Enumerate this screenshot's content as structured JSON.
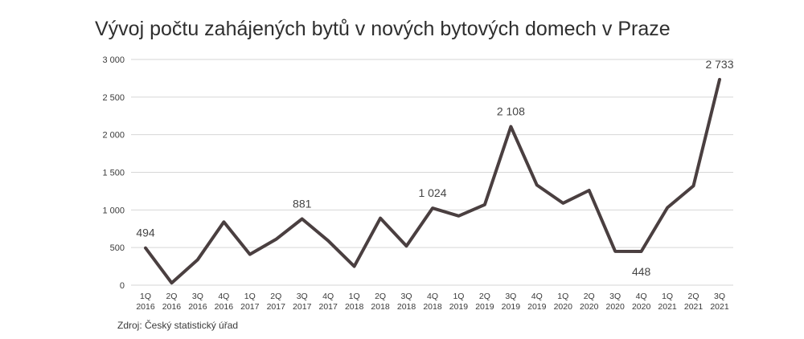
{
  "chart_data": {
    "type": "line",
    "title": "Vývoj počtu zahájených bytů v nových bytových domech v Praze",
    "source": "Zdroj: Český statistický úřad",
    "x_categories": [
      [
        "1Q",
        "2016"
      ],
      [
        "2Q",
        "2016"
      ],
      [
        "3Q",
        "2016"
      ],
      [
        "4Q",
        "2016"
      ],
      [
        "1Q",
        "2017"
      ],
      [
        "2Q",
        "2017"
      ],
      [
        "3Q",
        "2017"
      ],
      [
        "4Q",
        "2017"
      ],
      [
        "1Q",
        "2018"
      ],
      [
        "2Q",
        "2018"
      ],
      [
        "3Q",
        "2018"
      ],
      [
        "4Q",
        "2018"
      ],
      [
        "1Q",
        "2019"
      ],
      [
        "2Q",
        "2019"
      ],
      [
        "3Q",
        "2019"
      ],
      [
        "4Q",
        "2019"
      ],
      [
        "1Q",
        "2020"
      ],
      [
        "2Q",
        "2020"
      ],
      [
        "3Q",
        "2020"
      ],
      [
        "4Q",
        "2020"
      ],
      [
        "1Q",
        "2021"
      ],
      [
        "2Q",
        "2021"
      ],
      [
        "3Q",
        "2021"
      ]
    ],
    "values": [
      494,
      30,
      340,
      840,
      410,
      610,
      881,
      590,
      250,
      890,
      520,
      1024,
      920,
      1070,
      2108,
      1330,
      1090,
      1260,
      450,
      448,
      1030,
      1320,
      2733
    ],
    "ylim": [
      0,
      3000
    ],
    "y_ticks": [
      0,
      500,
      1000,
      1500,
      2000,
      2500,
      3000
    ],
    "y_tick_labels": [
      "0",
      "500",
      "1 000",
      "1 500",
      "2 000",
      "2 500",
      "3 000"
    ],
    "grid": true,
    "line_color": "#4a3f40",
    "data_labels": [
      {
        "index": 0,
        "text": "494",
        "position": "above"
      },
      {
        "index": 6,
        "text": "881",
        "position": "above"
      },
      {
        "index": 11,
        "text": "1 024",
        "position": "above"
      },
      {
        "index": 14,
        "text": "2 108",
        "position": "above"
      },
      {
        "index": 19,
        "text": "448",
        "position": "below"
      },
      {
        "index": 22,
        "text": "2 733",
        "position": "above"
      }
    ]
  }
}
